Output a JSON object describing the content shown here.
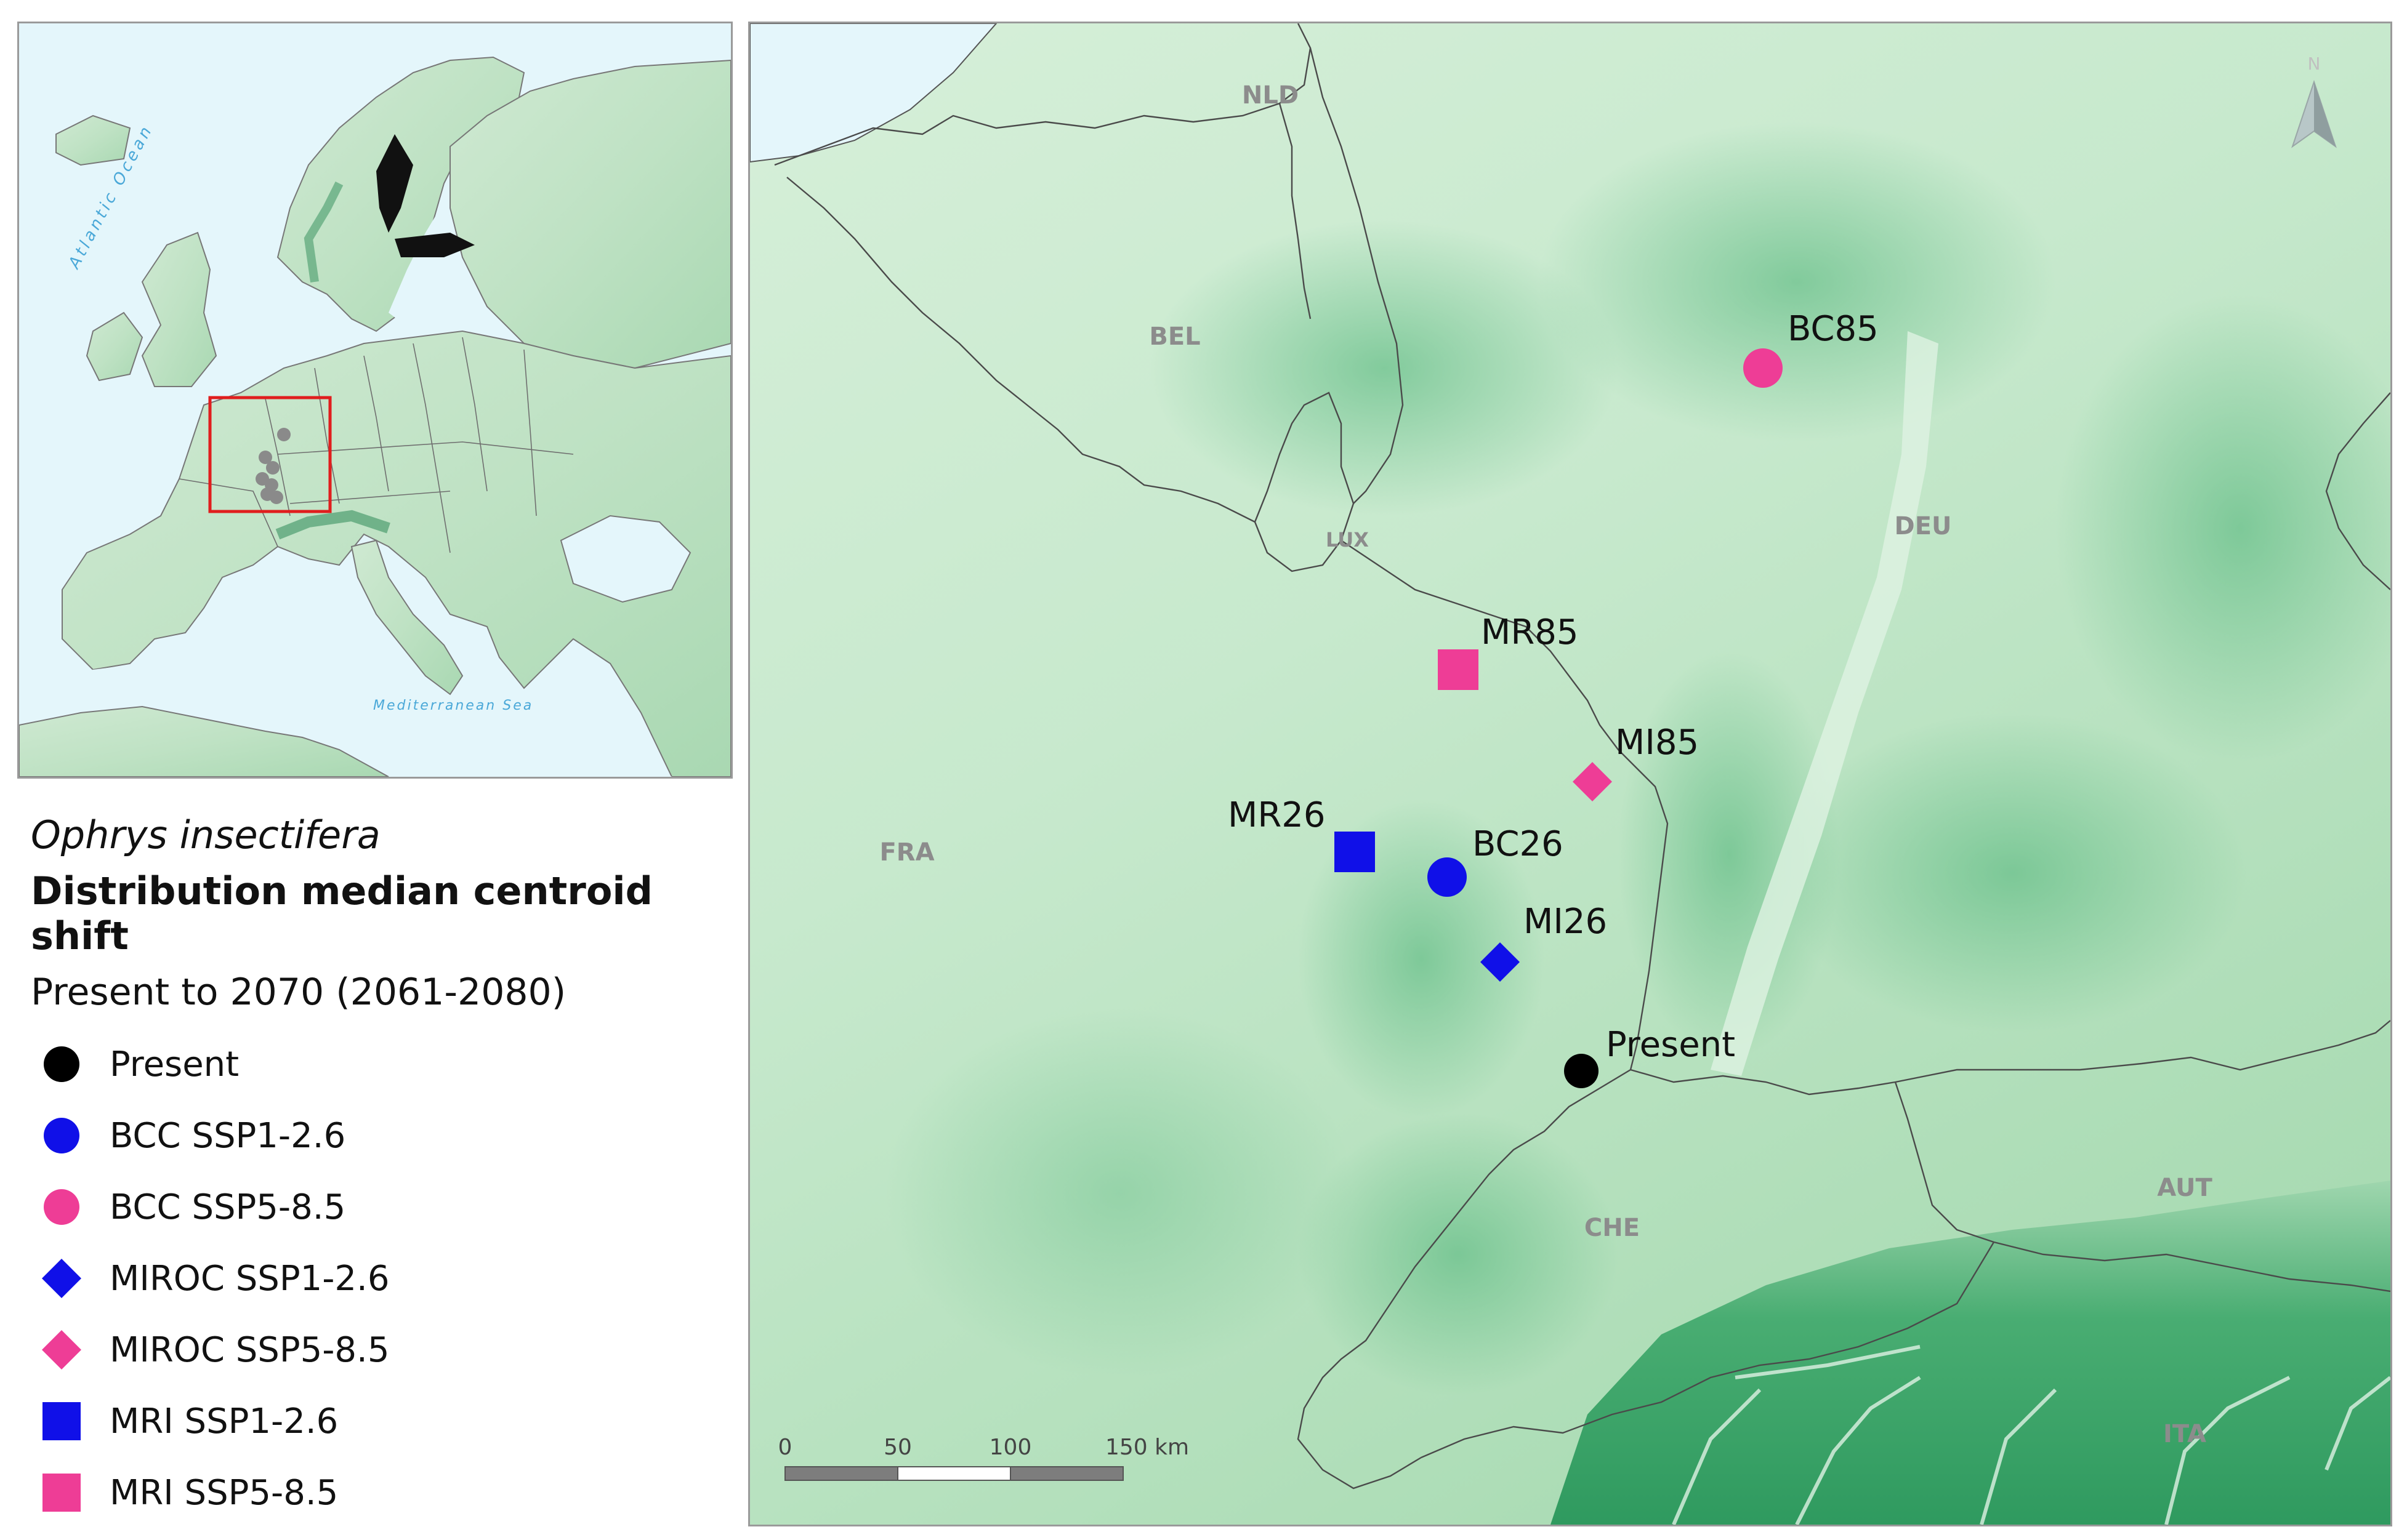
{
  "inset": {
    "atlantic_label": "Atlantic Ocean",
    "med_label": "Mediterranean Sea"
  },
  "main_map": {
    "countries": [
      "NLD",
      "BEL",
      "LUX",
      "DEU",
      "FRA",
      "CHE",
      "AUT",
      "ITA"
    ],
    "north_label": "N",
    "scale_labels": [
      "0",
      "50",
      "100",
      "150 km"
    ]
  },
  "legend": {
    "species": "Ophrys insectifera",
    "title": "Distribution median centroid shift",
    "subtitle": "Present to 2070 (2061-2080)",
    "items": [
      {
        "label": "Present",
        "shape": "circle",
        "color": "#000000"
      },
      {
        "label": "BCC SSP1-2.6",
        "shape": "circle",
        "color": "#1010e8"
      },
      {
        "label": "BCC SSP5-8.5",
        "shape": "circle",
        "color": "#ee3d96"
      },
      {
        "label": "MIROC SSP1-2.6",
        "shape": "diamond",
        "color": "#1010e8"
      },
      {
        "label": "MIROC SSP5-8.5",
        "shape": "diamond",
        "color": "#ee3d96"
      },
      {
        "label": "MRI SSP1-2.6",
        "shape": "square",
        "color": "#1010e8"
      },
      {
        "label": "MRI SSP5-8.5",
        "shape": "square",
        "color": "#ee3d96"
      }
    ]
  },
  "centroids": [
    {
      "label": "Present",
      "shape": "circle",
      "color": "#000000"
    },
    {
      "label": "BC26",
      "shape": "circle",
      "color": "#1010e8"
    },
    {
      "label": "BC85",
      "shape": "circle",
      "color": "#ee3d96"
    },
    {
      "label": "MI26",
      "shape": "diamond",
      "color": "#1010e8"
    },
    {
      "label": "MI85",
      "shape": "diamond",
      "color": "#ee3d96"
    },
    {
      "label": "MR26",
      "shape": "square",
      "color": "#1010e8"
    },
    {
      "label": "MR85",
      "shape": "square",
      "color": "#ee3d96"
    }
  ]
}
